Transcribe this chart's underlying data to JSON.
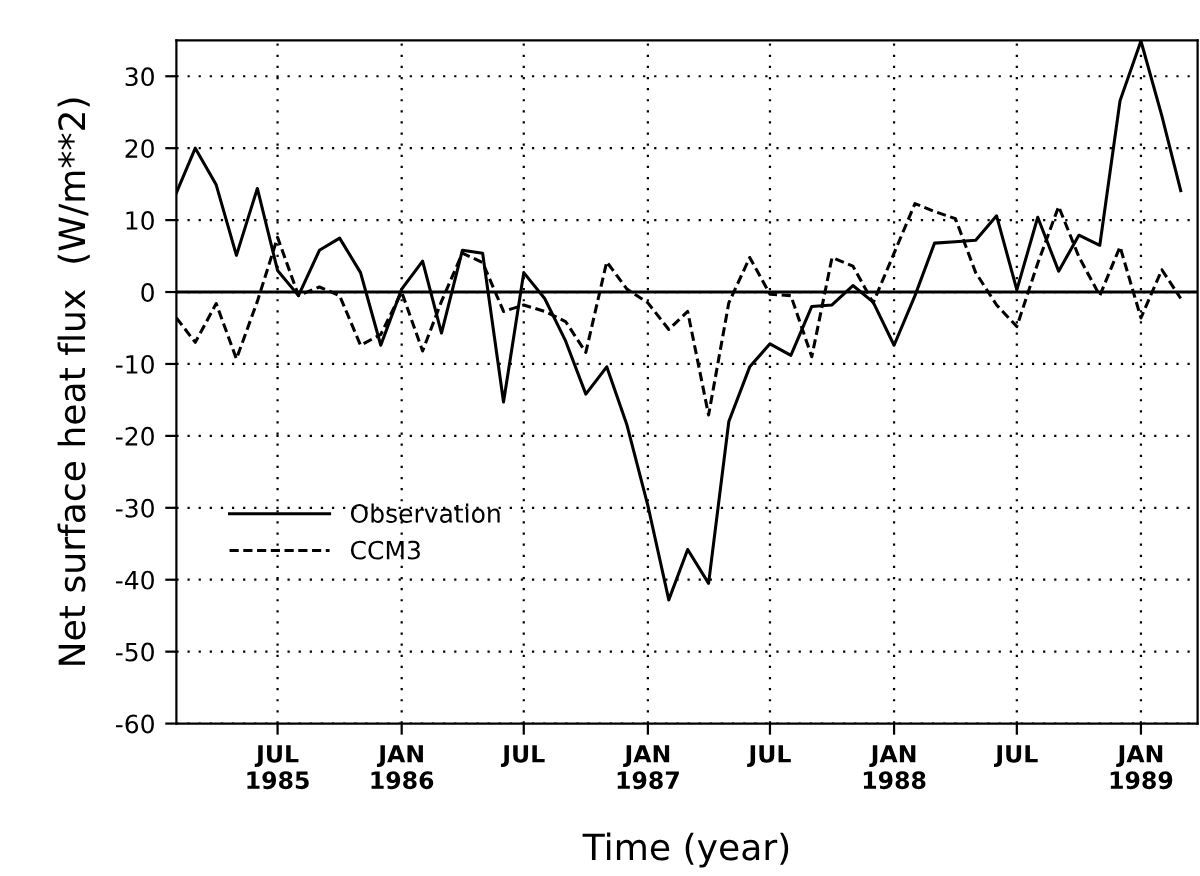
{
  "chart_data": {
    "type": "line",
    "xlabel": "Time (year)",
    "ylabel": "Net surface heat flux  (W/m**2)",
    "x": [
      "1985-02",
      "1985-03",
      "1985-04",
      "1985-05",
      "1985-06",
      "1985-07",
      "1985-08",
      "1985-09",
      "1985-10",
      "1985-11",
      "1985-12",
      "1986-01",
      "1986-02",
      "1986-03",
      "1986-04",
      "1986-05",
      "1986-06",
      "1986-07",
      "1986-08",
      "1986-09",
      "1986-10",
      "1986-11",
      "1986-12",
      "1987-01",
      "1987-02",
      "1987-03",
      "1987-04",
      "1987-05",
      "1987-06",
      "1987-07",
      "1987-08",
      "1987-09",
      "1987-10",
      "1987-11",
      "1987-12",
      "1988-01",
      "1988-02",
      "1988-03",
      "1988-04",
      "1988-05",
      "1988-06",
      "1988-07",
      "1988-08",
      "1988-09",
      "1988-10",
      "1988-11",
      "1988-12",
      "1989-01",
      "1989-02",
      "1989-03"
    ],
    "series": [
      {
        "name": "Observation",
        "color": "#000000",
        "line_style": "solid",
        "values": [
          13.8,
          20,
          14.9,
          5.1,
          14.4,
          3,
          -0.5,
          5.8,
          7.5,
          2.7,
          -7.4,
          0.4,
          4.3,
          -5.7,
          5.8,
          5.4,
          -15.3,
          2.7,
          -0.9,
          -6.8,
          -14.2,
          -10.4,
          -18.5,
          -29.7,
          -42.8,
          -35.8,
          -40.5,
          -18,
          -10.4,
          -7.2,
          -8.8,
          -2,
          -1.8,
          0.9,
          -1.4,
          -7.4,
          -0.5,
          6.8,
          7,
          7.2,
          10.6,
          0.3,
          10.4,
          2.9,
          7.9,
          6.5,
          26.6,
          34.9,
          24.5,
          14.1
        ]
      },
      {
        "name": "CCM3",
        "color": "#000000",
        "line_style": "dashed",
        "values": [
          -3.6,
          -7,
          -1.6,
          -9.3,
          -1.3,
          7.6,
          -0.5,
          0.7,
          -0.5,
          -7.4,
          -5.9,
          0,
          -8.2,
          -1.3,
          5.4,
          4.1,
          -2.7,
          -1.8,
          -2.7,
          -4.1,
          -8.4,
          4.2,
          0.4,
          -1.5,
          -5.2,
          -2.7,
          -17.1,
          -1.5,
          4.8,
          -0.3,
          -0.5,
          -9,
          4.8,
          3.6,
          -1.5,
          5.4,
          12.3,
          11.2,
          10.2,
          2.7,
          -1.8,
          -4.8,
          4,
          11.9,
          4.9,
          -0.5,
          6.3,
          -3.6,
          3.1,
          -0.9
        ]
      }
    ],
    "xlim": [
      "1985-02",
      "1989-03-26"
    ],
    "xticks": [
      {
        "value": "1985-07",
        "label": "JUL\n1985"
      },
      {
        "value": "1986-01",
        "label": "JAN\n1986"
      },
      {
        "value": "1986-07",
        "label": "JUL"
      },
      {
        "value": "1987-01",
        "label": "JAN\n1987"
      },
      {
        "value": "1987-07",
        "label": "JUL"
      },
      {
        "value": "1988-01",
        "label": "JAN\n1988"
      },
      {
        "value": "1988-07",
        "label": "JUL"
      },
      {
        "value": "1989-01",
        "label": "JAN\n1989"
      }
    ],
    "ylim": [
      -60,
      35
    ],
    "yticks": [
      -60,
      -50,
      -40,
      -30,
      -20,
      -10,
      0,
      10,
      20,
      30
    ],
    "ref_lines": [
      {
        "axis": "y",
        "value": 0,
        "color": "#000000",
        "line_style": "solid"
      }
    ],
    "grid": true,
    "legend": "bottom left",
    "marker": "none"
  }
}
